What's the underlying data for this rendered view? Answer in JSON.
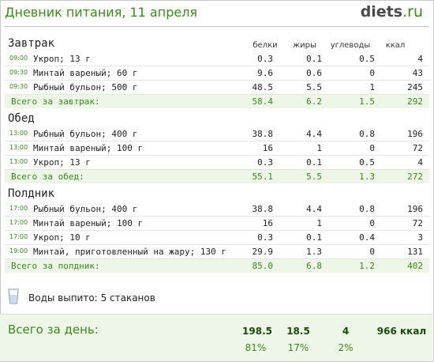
{
  "header": {
    "title": "Дневник питания, 11 апреля",
    "logo_main": "diets",
    "logo_suffix": ".ru"
  },
  "columns": {
    "protein": "белки",
    "fat": "жиры",
    "carbs": "углеводы",
    "kcal": "ккал"
  },
  "meals": [
    {
      "name": "Завтрак",
      "items": [
        {
          "time": "09:00",
          "name": "Укроп; 13 г",
          "protein": "0.3",
          "fat": "0.1",
          "carbs": "0.5",
          "kcal": "4"
        },
        {
          "time": "09:30",
          "name": "Минтай вареный; 60 г",
          "protein": "9.6",
          "fat": "0.6",
          "carbs": "0",
          "kcal": "43"
        },
        {
          "time": "09:30",
          "name": "Рыбный бульон; 500 г",
          "protein": "48.5",
          "fat": "5.5",
          "carbs": "1",
          "kcal": "245"
        }
      ],
      "total": {
        "label": "Всего за завтрак:",
        "protein": "58.4",
        "fat": "6.2",
        "carbs": "1.5",
        "kcal": "292"
      }
    },
    {
      "name": "Обед",
      "items": [
        {
          "time": "13:00",
          "name": "Рыбный бульон; 400 г",
          "protein": "38.8",
          "fat": "4.4",
          "carbs": "0.8",
          "kcal": "196"
        },
        {
          "time": "13:00",
          "name": "Минтай вареный; 100 г",
          "protein": "16",
          "fat": "1",
          "carbs": "0",
          "kcal": "72"
        },
        {
          "time": "13:00",
          "name": "Укроп; 13 г",
          "protein": "0.3",
          "fat": "0.1",
          "carbs": "0.5",
          "kcal": "4"
        }
      ],
      "total": {
        "label": "Всего за обед:",
        "protein": "55.1",
        "fat": "5.5",
        "carbs": "1.3",
        "kcal": "272"
      }
    },
    {
      "name": "Полдник",
      "items": [
        {
          "time": "17:00",
          "name": "Рыбный бульон; 400 г",
          "protein": "38.8",
          "fat": "4.4",
          "carbs": "0.8",
          "kcal": "196"
        },
        {
          "time": "17:00",
          "name": "Минтай вареный; 100 г",
          "protein": "16",
          "fat": "1",
          "carbs": "0",
          "kcal": "72"
        },
        {
          "time": "17:00",
          "name": "Укроп; 10 г",
          "protein": "0.3",
          "fat": "0.1",
          "carbs": "0.4",
          "kcal": "3"
        },
        {
          "time": "19:00",
          "name": "Минтай, приготовленный на жару; 130 г",
          "protein": "29.9",
          "fat": "1.3",
          "carbs": "0",
          "kcal": "131"
        }
      ],
      "total": {
        "label": "Всего за полдник:",
        "protein": "85.0",
        "fat": "6.8",
        "carbs": "1.2",
        "kcal": "402"
      }
    }
  ],
  "water": {
    "label": "Воды выпито:",
    "value": "5 стаканов",
    "icon": "glass-icon"
  },
  "day_total": {
    "label": "Всего за день:",
    "protein": "198.5",
    "fat": "18.5",
    "carbs": "4",
    "kcal": "966 ккал",
    "protein_pct": "81%",
    "fat_pct": "17%",
    "carbs_pct": "2%"
  },
  "colors": {
    "accent": "#3a8a1a",
    "total_bg": "#eef6e8",
    "border": "#c8c8c8"
  }
}
